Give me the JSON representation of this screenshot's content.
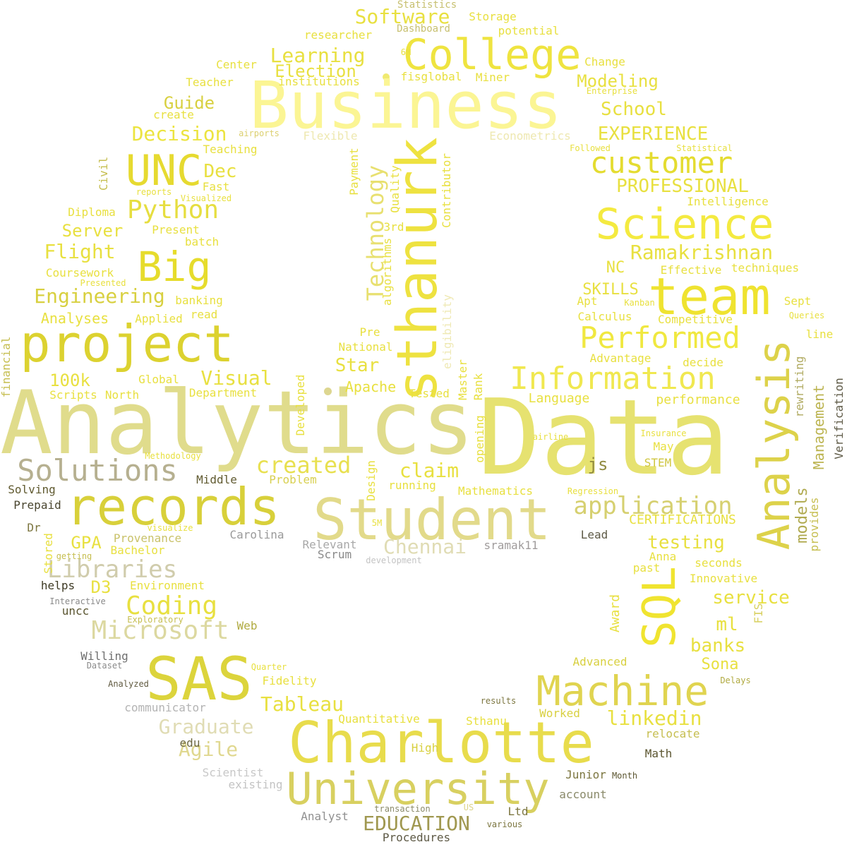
{
  "words": [
    {
      "text": "Data",
      "color": "#e6e270"
    },
    {
      "text": "Analytics",
      "color": "#e0dc8c"
    },
    {
      "text": "Business",
      "color": "#fbf594"
    },
    {
      "text": "Charlotte",
      "color": "#e8dc4c"
    },
    {
      "text": "Student",
      "color": "#e2da8a"
    },
    {
      "text": "SAS",
      "color": "#dcd43c"
    },
    {
      "text": "records",
      "color": "#d8d03a"
    },
    {
      "text": "project",
      "color": "#dcd230"
    },
    {
      "text": "team",
      "color": "#efe330"
    },
    {
      "text": "Science",
      "color": "#f4ea40"
    },
    {
      "text": "sthanurk",
      "color": "#eee240"
    },
    {
      "text": "College",
      "color": "#efe440"
    },
    {
      "text": "UNC",
      "color": "#e6da30"
    },
    {
      "text": "SQL",
      "color": "#f0e430"
    },
    {
      "text": "University",
      "color": "#d8d060"
    },
    {
      "text": "Machine",
      "color": "#e0d450"
    },
    {
      "text": "Analysis",
      "color": "#ddd24a"
    },
    {
      "text": "Big",
      "color": "#e6dc2c"
    },
    {
      "text": "Solutions",
      "color": "#b6b090"
    },
    {
      "text": "Information",
      "color": "#f0e850"
    },
    {
      "text": "Performed",
      "color": "#f0e840"
    },
    {
      "text": "customer",
      "color": "#e4dc30"
    },
    {
      "text": "Technology",
      "color": "#e8e070"
    },
    {
      "text": "application",
      "color": "#d6d070"
    },
    {
      "text": "Python",
      "color": "#e6de40"
    },
    {
      "text": "Microsoft",
      "color": "#dcd8a0"
    },
    {
      "text": "Coding",
      "color": "#e8e040"
    },
    {
      "text": "Libraries",
      "color": "#d0ccac"
    },
    {
      "text": "Chennai",
      "color": "#e0dcb4"
    },
    {
      "text": "created",
      "color": "#e8e050"
    },
    {
      "text": "Engineering",
      "color": "#d8d040"
    },
    {
      "text": "Software",
      "color": "#e8e040"
    },
    {
      "text": "Learning",
      "color": "#e8e040"
    },
    {
      "text": "Decision",
      "color": "#ece440"
    },
    {
      "text": "Tableau",
      "color": "#e8e040"
    },
    {
      "text": "EDUCATION",
      "color": "#a09850"
    },
    {
      "text": "Graduate",
      "color": "#e0dcb4"
    },
    {
      "text": "linkedin",
      "color": "#e8e040"
    },
    {
      "text": "Management",
      "color": "#bcb450"
    },
    {
      "text": "Ramakrishnan",
      "color": "#e8e040"
    },
    {
      "text": "PROFESSIONAL",
      "color": "#e8e040"
    },
    {
      "text": "EXPERIENCE",
      "color": "#e8e040"
    },
    {
      "text": "testing",
      "color": "#e8e040"
    },
    {
      "text": "banks",
      "color": "#e8e040"
    },
    {
      "text": "service",
      "color": "#e8e040"
    },
    {
      "text": "Agile",
      "color": "#e0d890"
    },
    {
      "text": "Visual",
      "color": "#e8e040"
    },
    {
      "text": "claim",
      "color": "#e8e040"
    },
    {
      "text": "Flight",
      "color": "#e8e040"
    },
    {
      "text": "Server",
      "color": "#e8e040"
    },
    {
      "text": "Guide",
      "color": "#d8d040"
    },
    {
      "text": "School",
      "color": "#e8e040"
    },
    {
      "text": "Modeling",
      "color": "#e8e040"
    },
    {
      "text": "Election",
      "color": "#e8e040"
    },
    {
      "text": "100k",
      "color": "#e8e040"
    },
    {
      "text": "Dec",
      "color": "#e8e040"
    },
    {
      "text": "Star",
      "color": "#e8e040"
    },
    {
      "text": "GPA",
      "color": "#e8e040"
    },
    {
      "text": "D3",
      "color": "#e8e040"
    },
    {
      "text": "models",
      "color": "#b0aa50"
    },
    {
      "text": "ml",
      "color": "#e8e040"
    },
    {
      "text": "js",
      "color": "#908a40"
    },
    {
      "text": "NC",
      "color": "#e8e040"
    },
    {
      "text": "SKILLS",
      "color": "#e8e040"
    },
    {
      "text": "Sona",
      "color": "#e8e040"
    },
    {
      "text": "Award",
      "color": "#e8e040"
    },
    {
      "text": "CERTIFICATIONS",
      "color": "#e8e040"
    },
    {
      "text": "Language",
      "color": "#e8e040"
    },
    {
      "text": "performance",
      "color": "#e8e040"
    },
    {
      "text": "Quality",
      "color": "#e8e040"
    },
    {
      "text": "Payment",
      "color": "#e8e040"
    },
    {
      "text": "Contributor",
      "color": "#e8e040"
    },
    {
      "text": "algorithms",
      "color": "#e8e040"
    },
    {
      "text": "3rd",
      "color": "#e8e040"
    },
    {
      "text": "eligibility",
      "color": "#e8e040"
    },
    {
      "text": "Master",
      "color": "#e8e040"
    },
    {
      "text": "Rank",
      "color": "#e8e040"
    },
    {
      "text": "opening",
      "color": "#e8e040"
    },
    {
      "text": "Design",
      "color": "#e8e040"
    },
    {
      "text": "Developed",
      "color": "#e8e040"
    },
    {
      "text": "Verification",
      "color": "#e8e040"
    },
    {
      "text": "financial",
      "color": "#e8e040"
    },
    {
      "text": "provides",
      "color": "#e8e040"
    },
    {
      "text": "rewriting",
      "color": "#e8e040"
    },
    {
      "text": "Stored",
      "color": "#e8e040"
    },
    {
      "text": "Civil",
      "color": "#e8e040"
    },
    {
      "text": "FIS",
      "color": "#e8e040"
    },
    {
      "text": "Statistics",
      "color": "#e8e040"
    },
    {
      "text": "Dashboard",
      "color": "#e8e040"
    },
    {
      "text": "Storage",
      "color": "#e8e040"
    },
    {
      "text": "researcher",
      "color": "#e8e040"
    },
    {
      "text": "potential",
      "color": "#e8e040"
    },
    {
      "text": "6M",
      "color": "#e8e040"
    },
    {
      "text": "Center",
      "color": "#e8e040"
    },
    {
      "text": "Change",
      "color": "#e8e040"
    },
    {
      "text": "fisglobal",
      "color": "#e8e040"
    },
    {
      "text": "Miner",
      "color": "#e8e040"
    },
    {
      "text": "institutions",
      "color": "#e8e040"
    },
    {
      "text": "Teacher",
      "color": "#e8e040"
    },
    {
      "text": "Enterprise",
      "color": "#e8e040"
    },
    {
      "text": "create",
      "color": "#e8e040"
    },
    {
      "text": "airports",
      "color": "#e8e040"
    },
    {
      "text": "Flexible",
      "color": "#e8e040"
    },
    {
      "text": "Econometrics",
      "color": "#e8e040"
    },
    {
      "text": "Followed",
      "color": "#e8e040"
    },
    {
      "text": "Statistical",
      "color": "#e8e040"
    },
    {
      "text": "Teaching",
      "color": "#e8e040"
    },
    {
      "text": "Fast",
      "color": "#e8e040"
    },
    {
      "text": "reports",
      "color": "#e8e040"
    },
    {
      "text": "Visualized",
      "color": "#e8e040"
    },
    {
      "text": "Intelligence",
      "color": "#e8e040"
    },
    {
      "text": "Diploma",
      "color": "#e8e040"
    },
    {
      "text": "Present",
      "color": "#e8e040"
    },
    {
      "text": "batch",
      "color": "#e8e040"
    },
    {
      "text": "Coursework",
      "color": "#e8e040"
    },
    {
      "text": "Effective",
      "color": "#e8e040"
    },
    {
      "text": "techniques",
      "color": "#e8e040"
    },
    {
      "text": "Presented",
      "color": "#e8e040"
    },
    {
      "text": "banking",
      "color": "#e8e040"
    },
    {
      "text": "Apt",
      "color": "#e8e040"
    },
    {
      "text": "Kanban",
      "color": "#e8e040"
    },
    {
      "text": "Sept",
      "color": "#e8e040"
    },
    {
      "text": "read",
      "color": "#e8e040"
    },
    {
      "text": "Calculus",
      "color": "#e8e040"
    },
    {
      "text": "Queries",
      "color": "#e8e040"
    },
    {
      "text": "Analyses",
      "color": "#e8e040"
    },
    {
      "text": "Applied",
      "color": "#e8e040"
    },
    {
      "text": "Competitive",
      "color": "#e8e040"
    },
    {
      "text": "line",
      "color": "#e8e040"
    },
    {
      "text": "Pre",
      "color": "#e8e040"
    },
    {
      "text": "National",
      "color": "#e8e040"
    },
    {
      "text": "Advantage",
      "color": "#e8e040"
    },
    {
      "text": "decide",
      "color": "#e8e040"
    },
    {
      "text": "Global",
      "color": "#e8e040"
    },
    {
      "text": "Scripts",
      "color": "#e8e040"
    },
    {
      "text": "North",
      "color": "#e8e040"
    },
    {
      "text": "Department",
      "color": "#e8e040"
    },
    {
      "text": "Apache",
      "color": "#e8e040"
    },
    {
      "text": "Tested",
      "color": "#e8e040"
    },
    {
      "text": "Insurance",
      "color": "#e8e040"
    },
    {
      "text": "airline",
      "color": "#e8e040"
    },
    {
      "text": "May",
      "color": "#e8e040"
    },
    {
      "text": "STEM",
      "color": "#e8e040"
    },
    {
      "text": "Methodology",
      "color": "#e8e040"
    },
    {
      "text": "Solving",
      "color": "#e8e040"
    },
    {
      "text": "Middle",
      "color": "#e8e040"
    },
    {
      "text": "Problem",
      "color": "#e8e040"
    },
    {
      "text": "running",
      "color": "#e8e040"
    },
    {
      "text": "Mathematics",
      "color": "#e8e040"
    },
    {
      "text": "Regression",
      "color": "#e8e040"
    },
    {
      "text": "Prepaid",
      "color": "#e8e040"
    },
    {
      "text": "Dr",
      "color": "#e8e040"
    },
    {
      "text": "Provenance",
      "color": "#e8e040"
    },
    {
      "text": "visualize",
      "color": "#e8e040"
    },
    {
      "text": "Carolina",
      "color": "#e8e040"
    },
    {
      "text": "5M",
      "color": "#e8e040"
    },
    {
      "text": "Lead",
      "color": "#e8e040"
    },
    {
      "text": "getting",
      "color": "#e8e040"
    },
    {
      "text": "Bachelor",
      "color": "#e8e040"
    },
    {
      "text": "Relevant",
      "color": "#e8e040"
    },
    {
      "text": "Scrum",
      "color": "#e8e040"
    },
    {
      "text": "sramak11",
      "color": "#e8e040"
    },
    {
      "text": "Anna",
      "color": "#e8e040"
    },
    {
      "text": "development",
      "color": "#e8e040"
    },
    {
      "text": "past",
      "color": "#e8e040"
    },
    {
      "text": "seconds",
      "color": "#e8e040"
    },
    {
      "text": "helps",
      "color": "#e8e040"
    },
    {
      "text": "Environment",
      "color": "#e8e040"
    },
    {
      "text": "Innovative",
      "color": "#e8e040"
    },
    {
      "text": "Interactive",
      "color": "#e8e040"
    },
    {
      "text": "uncc",
      "color": "#e8e040"
    },
    {
      "text": "Exploratory",
      "color": "#e8e040"
    },
    {
      "text": "Web",
      "color": "#e8e040"
    },
    {
      "text": "Willing",
      "color": "#e8e040"
    },
    {
      "text": "Dataset",
      "color": "#e8e040"
    },
    {
      "text": "Quarter",
      "color": "#e8e040"
    },
    {
      "text": "Advanced",
      "color": "#e8e040"
    },
    {
      "text": "Fidelity",
      "color": "#e8e040"
    },
    {
      "text": "Delays",
      "color": "#e8e040"
    },
    {
      "text": "Analyzed",
      "color": "#e8e040"
    },
    {
      "text": "communicator",
      "color": "#e8e040"
    },
    {
      "text": "results",
      "color": "#e8e040"
    },
    {
      "text": "Worked",
      "color": "#e8e040"
    },
    {
      "text": "Quantitative",
      "color": "#e8e040"
    },
    {
      "text": "Sthanu",
      "color": "#e8e040"
    },
    {
      "text": "relocate",
      "color": "#e8e040"
    },
    {
      "text": "edu",
      "color": "#e8e040"
    },
    {
      "text": "High",
      "color": "#e8e040"
    },
    {
      "text": "Math",
      "color": "#e8e040"
    },
    {
      "text": "Scientist",
      "color": "#e8e040"
    },
    {
      "text": "existing",
      "color": "#e8e040"
    },
    {
      "text": "Junior",
      "color": "#e8e040"
    },
    {
      "text": "Month",
      "color": "#e8e040"
    },
    {
      "text": "account",
      "color": "#e8e040"
    },
    {
      "text": "transaction",
      "color": "#e8e040"
    },
    {
      "text": "US",
      "color": "#e8e040"
    },
    {
      "text": "Ltd",
      "color": "#e8e040"
    },
    {
      "text": "Analyst",
      "color": "#e8e040"
    },
    {
      "text": "various",
      "color": "#e8e040"
    },
    {
      "text": "Procedures",
      "color": "#e8e040"
    }
  ]
}
